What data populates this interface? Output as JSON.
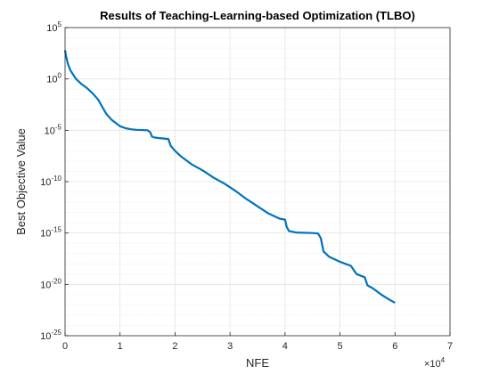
{
  "chart_data": {
    "type": "line",
    "title": "Results of Teaching-Learning-based Optimization (TLBO)",
    "xlabel": "NFE",
    "ylabel": "Best Objective Value",
    "x_multiplier": "×10",
    "x_multiplier_exp": "4",
    "xlim": [
      0,
      7
    ],
    "ylim_log10": [
      -25,
      5
    ],
    "yscale": "log",
    "grid": true,
    "minor_grid": true,
    "x_ticks": [
      "0",
      "1",
      "2",
      "3",
      "4",
      "5",
      "6",
      "7"
    ],
    "y_ticks": [
      {
        "base": "10",
        "exp": "5",
        "log10": 5
      },
      {
        "base": "10",
        "exp": "0",
        "log10": 0
      },
      {
        "base": "10",
        "exp": "-5",
        "log10": -5
      },
      {
        "base": "10",
        "exp": "-10",
        "log10": -10
      },
      {
        "base": "10",
        "exp": "-15",
        "log10": -15
      },
      {
        "base": "10",
        "exp": "-20",
        "log10": -20
      },
      {
        "base": "10",
        "exp": "-25",
        "log10": -25
      }
    ],
    "series": [
      {
        "color": "#0072bd",
        "x": [
          0.0,
          0.02,
          0.05,
          0.1,
          0.2,
          0.3,
          0.4,
          0.5,
          0.6,
          0.75,
          0.85,
          0.95,
          1.0,
          1.1,
          1.2,
          1.3,
          1.5,
          1.55,
          1.58,
          1.62,
          1.7,
          1.8,
          1.88,
          1.92,
          2.0,
          2.1,
          2.3,
          2.5,
          2.7,
          2.9,
          3.1,
          3.3,
          3.5,
          3.7,
          3.9,
          4.0,
          4.03,
          4.07,
          4.2,
          4.5,
          4.6,
          4.65,
          4.7,
          4.8,
          5.0,
          5.1,
          5.2,
          5.25,
          5.3,
          5.45,
          5.5,
          5.6,
          5.75,
          5.9,
          6.0
        ],
        "y_log10": [
          2.8,
          2.2,
          1.5,
          0.8,
          0.0,
          -0.5,
          -0.9,
          -1.4,
          -2.0,
          -3.4,
          -4.0,
          -4.4,
          -4.6,
          -4.8,
          -4.9,
          -4.95,
          -5.0,
          -5.2,
          -5.6,
          -5.7,
          -5.75,
          -5.8,
          -5.85,
          -6.5,
          -7.0,
          -7.5,
          -8.3,
          -8.9,
          -9.6,
          -10.2,
          -10.9,
          -11.7,
          -12.4,
          -13.1,
          -13.6,
          -13.7,
          -14.4,
          -14.8,
          -14.95,
          -15.0,
          -15.05,
          -15.5,
          -16.8,
          -17.3,
          -17.8,
          -18.0,
          -18.2,
          -18.6,
          -19.0,
          -19.3,
          -20.1,
          -20.4,
          -21.0,
          -21.5,
          -21.8
        ]
      }
    ]
  }
}
